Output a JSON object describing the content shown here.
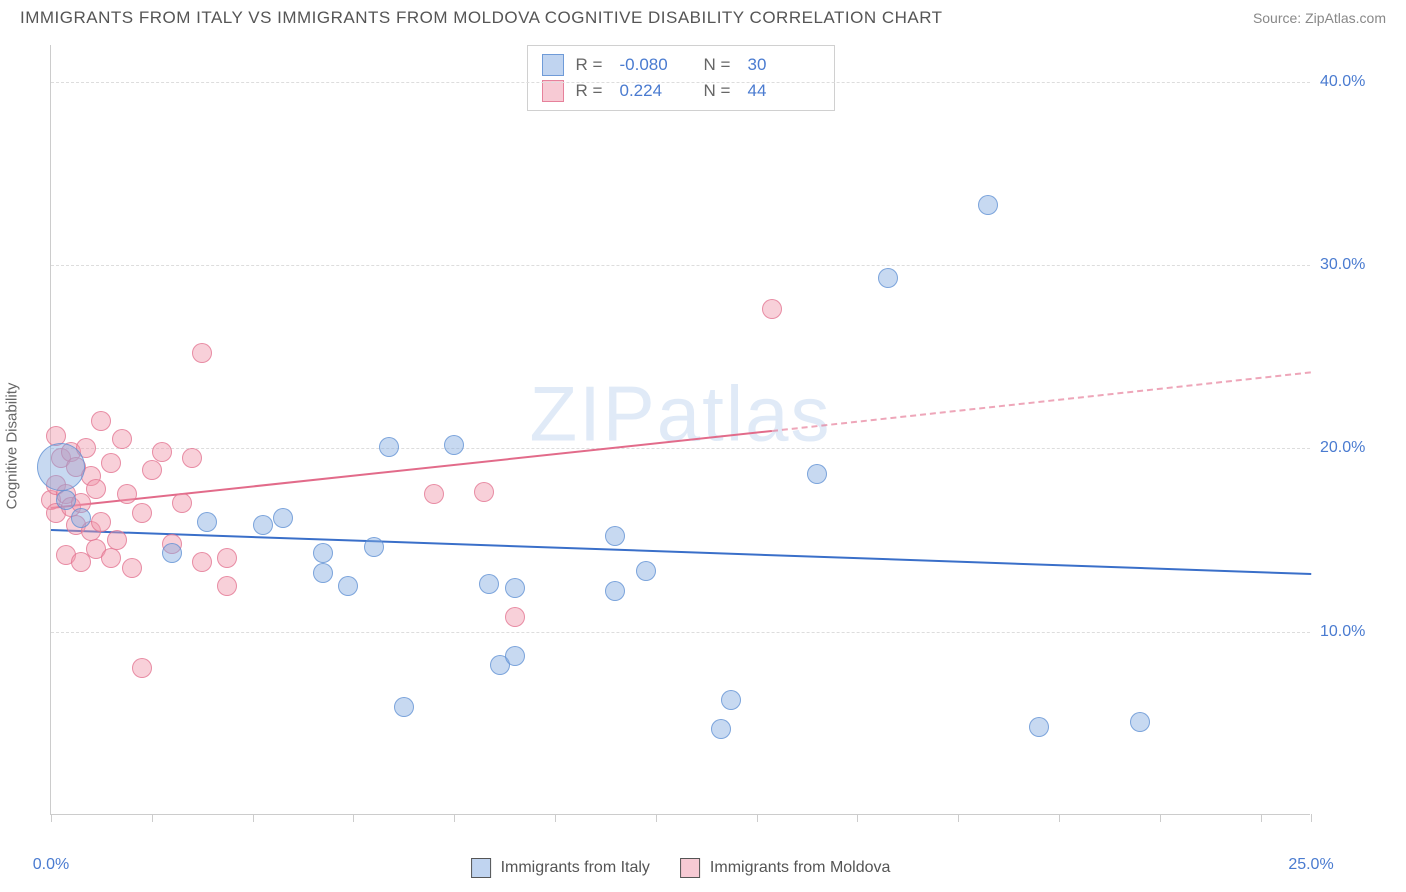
{
  "header": {
    "title": "IMMIGRANTS FROM ITALY VS IMMIGRANTS FROM MOLDOVA COGNITIVE DISABILITY CORRELATION CHART",
    "source": "Source: ZipAtlas.com"
  },
  "chart": {
    "type": "scatter",
    "ylabel": "Cognitive Disability",
    "watermark": "ZIPatlas",
    "background_color": "#ffffff",
    "grid_color": "#dddddd",
    "axis_color": "#cccccc",
    "xlim": [
      0,
      25
    ],
    "ylim": [
      0,
      42
    ],
    "xticks": [
      0,
      2,
      4,
      6,
      8,
      10,
      12,
      14,
      16,
      18,
      20,
      22,
      24,
      25
    ],
    "xtick_labels": {
      "0": "0.0%",
      "25": "25.0%"
    },
    "yticks": [
      10,
      20,
      30,
      40
    ],
    "ytick_labels": [
      "10.0%",
      "20.0%",
      "30.0%",
      "40.0%"
    ],
    "point_radius": 10,
    "series": {
      "italy": {
        "label": "Immigrants from Italy",
        "color_fill": "rgba(130,170,225,0.45)",
        "color_stroke": "rgba(90,140,210,0.7)",
        "trend_color": "#3a6fc9",
        "R": "-0.080",
        "N": "30",
        "trend": {
          "x1": 0,
          "y1": 15.6,
          "x2": 25,
          "y2": 13.2
        },
        "points": [
          [
            0.2,
            19.0,
            24
          ],
          [
            0.3,
            17.2,
            10
          ],
          [
            0.6,
            16.2,
            10
          ],
          [
            2.4,
            14.3,
            10
          ],
          [
            3.1,
            16.0,
            10
          ],
          [
            4.2,
            15.8,
            10
          ],
          [
            4.6,
            16.2,
            10
          ],
          [
            5.4,
            13.2,
            10
          ],
          [
            5.4,
            14.3,
            10
          ],
          [
            5.9,
            12.5,
            10
          ],
          [
            6.4,
            14.6,
            10
          ],
          [
            6.7,
            20.1,
            10
          ],
          [
            7.0,
            5.9,
            10
          ],
          [
            8.0,
            20.2,
            10
          ],
          [
            8.7,
            12.6,
            10
          ],
          [
            8.9,
            8.2,
            10
          ],
          [
            9.2,
            8.7,
            10
          ],
          [
            9.2,
            12.4,
            10
          ],
          [
            11.2,
            15.2,
            10
          ],
          [
            11.2,
            12.2,
            10
          ],
          [
            11.8,
            13.3,
            10
          ],
          [
            13.3,
            4.7,
            10
          ],
          [
            13.5,
            6.3,
            10
          ],
          [
            15.2,
            18.6,
            10
          ],
          [
            16.6,
            29.3,
            10
          ],
          [
            18.6,
            33.3,
            10
          ],
          [
            19.6,
            4.8,
            10
          ],
          [
            21.6,
            5.1,
            10
          ]
        ]
      },
      "moldova": {
        "label": "Immigrants from Moldova",
        "color_fill": "rgba(240,150,170,0.45)",
        "color_stroke": "rgba(225,110,140,0.7)",
        "trend_color": "#e26b8a",
        "R": "0.224",
        "N": "44",
        "trend": {
          "x1": 0,
          "y1": 16.8,
          "x2": 14.3,
          "y2": 21.0
        },
        "trend_dashed": {
          "x1": 14.3,
          "y1": 21.0,
          "x2": 25,
          "y2": 24.2
        },
        "points": [
          [
            0.0,
            17.2,
            10
          ],
          [
            0.1,
            20.7,
            10
          ],
          [
            0.1,
            18.0,
            10
          ],
          [
            0.1,
            16.5,
            10
          ],
          [
            0.2,
            19.5,
            10
          ],
          [
            0.3,
            14.2,
            10
          ],
          [
            0.3,
            17.5,
            10
          ],
          [
            0.4,
            19.8,
            10
          ],
          [
            0.4,
            16.8,
            10
          ],
          [
            0.5,
            15.8,
            10
          ],
          [
            0.5,
            19.0,
            10
          ],
          [
            0.6,
            17.0,
            10
          ],
          [
            0.6,
            13.8,
            10
          ],
          [
            0.7,
            20.0,
            10
          ],
          [
            0.8,
            15.5,
            10
          ],
          [
            0.8,
            18.5,
            10
          ],
          [
            0.9,
            14.5,
            10
          ],
          [
            0.9,
            17.8,
            10
          ],
          [
            1.0,
            21.5,
            10
          ],
          [
            1.0,
            16.0,
            10
          ],
          [
            1.2,
            14.0,
            10
          ],
          [
            1.2,
            19.2,
            10
          ],
          [
            1.3,
            15.0,
            10
          ],
          [
            1.4,
            20.5,
            10
          ],
          [
            1.5,
            17.5,
            10
          ],
          [
            1.6,
            13.5,
            10
          ],
          [
            1.8,
            16.5,
            10
          ],
          [
            1.8,
            8.0,
            10
          ],
          [
            2.0,
            18.8,
            10
          ],
          [
            2.2,
            19.8,
            10
          ],
          [
            2.4,
            14.8,
            10
          ],
          [
            2.6,
            17.0,
            10
          ],
          [
            2.8,
            19.5,
            10
          ],
          [
            3.0,
            13.8,
            10
          ],
          [
            3.0,
            25.2,
            10
          ],
          [
            3.5,
            12.5,
            10
          ],
          [
            3.5,
            14.0,
            10
          ],
          [
            7.6,
            17.5,
            10
          ],
          [
            8.6,
            17.6,
            10
          ],
          [
            9.2,
            10.8,
            10
          ],
          [
            14.3,
            27.6,
            10
          ]
        ]
      }
    },
    "legend_top": {
      "rows": [
        {
          "swatch": "blue",
          "r_label": "R =",
          "r_value": "-0.080",
          "n_label": "N =",
          "n_value": "30"
        },
        {
          "swatch": "pink",
          "r_label": "R =",
          "r_value": "0.224",
          "n_label": "N =",
          "n_value": "44"
        }
      ]
    },
    "legend_bottom": [
      {
        "swatch": "blue",
        "label": "Immigrants from Italy"
      },
      {
        "swatch": "pink",
        "label": "Immigrants from Moldova"
      }
    ]
  }
}
